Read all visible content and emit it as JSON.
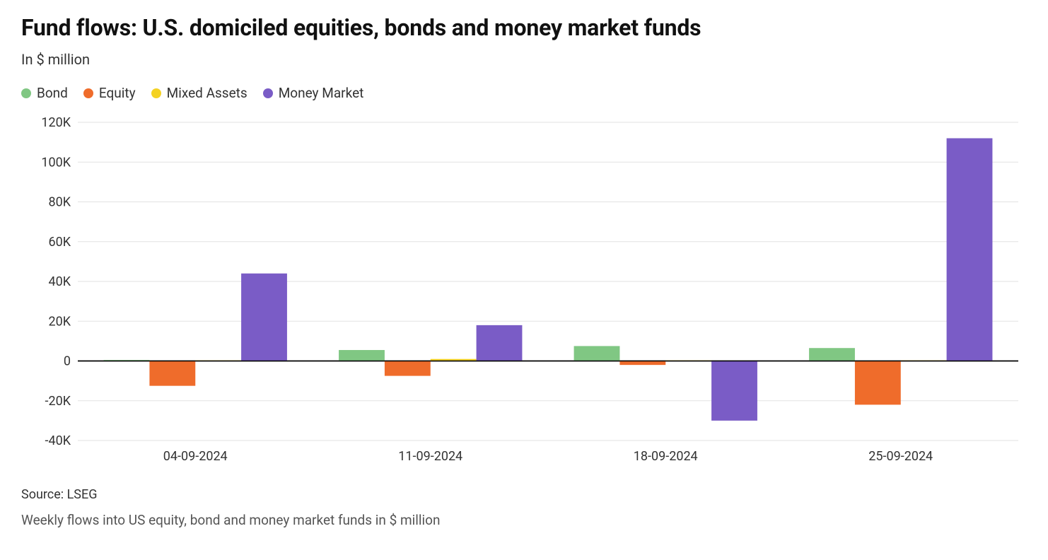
{
  "title": "Fund flows: U.S. domiciled equities, bonds and money market funds",
  "subtitle": "In $ million",
  "source": "Source: LSEG",
  "note": "Weekly flows into US equity, bond and money market funds in $ million",
  "chart": {
    "type": "bar-grouped",
    "background_color": "#ffffff",
    "gridline_color": "#e2e2e2",
    "zero_line_color": "#000000",
    "axis_label_color": "#333333",
    "axis_font_size": 18,
    "title_fontsize": 32,
    "subtitle_fontsize": 20,
    "legend_fontsize": 19,
    "bar_group_gap_ratio": 0.22,
    "bar_inner_gap_ratio": 0.0,
    "y": {
      "min": -40000,
      "max": 120000,
      "tick_step": 20000,
      "ticks": [
        -40000,
        -20000,
        0,
        20000,
        40000,
        60000,
        80000,
        100000,
        120000
      ],
      "tick_labels": [
        "-40K",
        "-20K",
        "0",
        "20K",
        "40K",
        "60K",
        "80K",
        "100K",
        "120K"
      ]
    },
    "categories": [
      "04-09-2024",
      "11-09-2024",
      "18-09-2024",
      "25-09-2024"
    ],
    "series": [
      {
        "name": "Bond",
        "color": "#80c783",
        "values": [
          500,
          5500,
          7500,
          6500
        ]
      },
      {
        "name": "Equity",
        "color": "#ef6c2b",
        "values": [
          -12500,
          -7500,
          -2000,
          -22000
        ]
      },
      {
        "name": "Mixed Assets",
        "color": "#f4d223",
        "values": [
          300,
          1000,
          300,
          300
        ]
      },
      {
        "name": "Money Market",
        "color": "#7a5cc6",
        "values": [
          44000,
          18000,
          -30000,
          112000
        ]
      }
    ]
  }
}
